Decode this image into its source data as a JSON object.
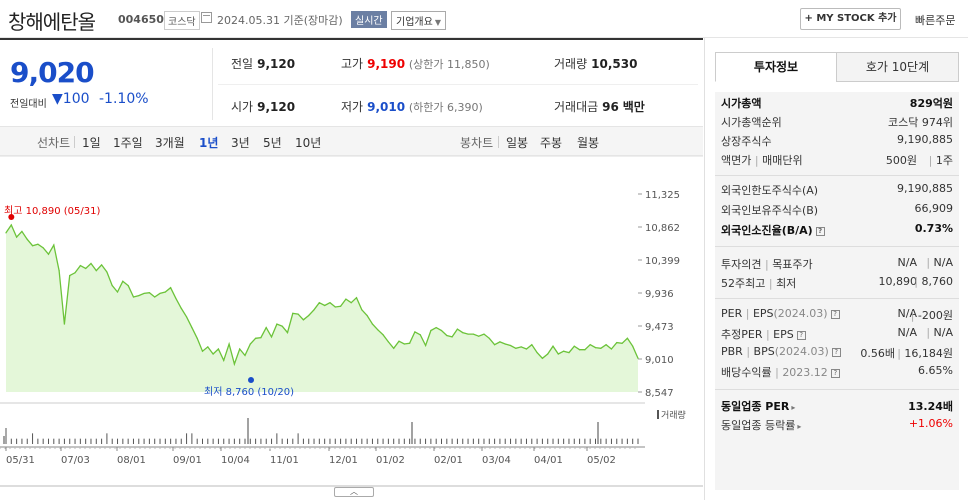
{
  "header": {
    "name": "창해에탄올",
    "code": "004650",
    "market": "코스닥",
    "date": "2024.05.31 기준(장마감)",
    "realtime": "실시간",
    "company_overview": "기업개요",
    "my_stock": "+ MY STOCK 추가",
    "quick_order": "빠른주문"
  },
  "price": {
    "current": "9,020",
    "change_label": "전일대비",
    "change_arrow": "▼",
    "change_value": "100",
    "change_pct": "-1.10%",
    "prev_label": "전일",
    "prev": "9,120",
    "high_label": "고가",
    "high": "9,190",
    "upper_limit": "(상한가 11,850)",
    "volume_label": "거래량",
    "volume": "10,530",
    "open_label": "시가",
    "open": "9,120",
    "low_label": "저가",
    "low": "9,010",
    "lower_limit": "(하한가 6,390)",
    "amount_label": "거래대금",
    "amount": "96",
    "amount_unit": "백만"
  },
  "periods": {
    "line_label": "선차트",
    "line_items": [
      "1일",
      "1주일",
      "3개월",
      "1년",
      "3년",
      "5년",
      "10년"
    ],
    "selected": "1년",
    "candle_label": "봉차트",
    "candle_items": [
      "일봉",
      "주봉",
      "월봉"
    ]
  },
  "chart_data": {
    "type": "area",
    "y_ticks": [
      "11,325",
      "10,862",
      "10,399",
      "9,936",
      "9,473",
      "9,010",
      "8,547"
    ],
    "ylim": [
      8547,
      11325
    ],
    "x_ticks": [
      "05/31",
      "07/03",
      "08/01",
      "09/01",
      "10/04",
      "11/01",
      "12/01",
      "01/02",
      "02/01",
      "03/04",
      "04/01",
      "05/02"
    ],
    "max_label": "최고 10,890 (05/31)",
    "min_label": "최저 8,760 (10/20)",
    "volume_label": "거래량",
    "series": [
      {
        "values": [
          10780,
          10890,
          10720,
          10800,
          10690,
          10600,
          10620,
          10570,
          10480,
          10610,
          10250,
          9500,
          10180,
          10220,
          10320,
          10280,
          10350,
          10250,
          10330,
          10230,
          10040,
          9950,
          10100,
          10040,
          9880,
          9900,
          9930,
          9940,
          9880,
          9930,
          9950,
          10010,
          9860,
          9720,
          9600,
          9450,
          9300,
          9120,
          9180,
          9080,
          9150,
          8990,
          9220,
          8940,
          9150,
          9060,
          9220,
          9300,
          9310,
          9450,
          9320,
          9500,
          9470,
          9380,
          9650,
          9640,
          9560,
          9620,
          9700,
          9800,
          9760,
          9800,
          9740,
          9750,
          9850,
          9800,
          9870,
          9700,
          9620,
          9500,
          9420,
          9350,
          9250,
          9160,
          9260,
          9220,
          9230,
          9390,
          9350,
          9200,
          9410,
          9450,
          9410,
          9340,
          9320,
          9430,
          9380,
          9360,
          9360,
          9330,
          9360,
          9300,
          9210,
          9250,
          9220,
          9200,
          9160,
          9180,
          9150,
          9210,
          9100,
          9020,
          9080,
          9190,
          9080,
          9120,
          9100,
          9190,
          9140,
          9140,
          9210,
          9170,
          9160,
          9210,
          9150,
          9240,
          9230,
          9300,
          9190,
          9020
        ]
      },
      {
        "name": "거래량",
        "values": [
          3,
          1,
          1,
          1,
          1,
          2,
          1,
          1,
          1,
          1,
          1,
          1,
          1,
          1,
          1,
          1,
          1,
          1,
          1,
          2,
          1,
          1,
          1,
          1,
          1,
          1,
          1,
          1,
          1,
          1,
          1,
          1,
          1,
          1,
          2,
          2,
          1,
          1,
          1,
          1,
          1,
          1,
          1,
          1,
          1,
          1,
          1,
          1,
          1,
          1,
          1,
          2,
          1,
          1,
          1,
          2,
          1,
          1,
          1,
          1,
          1,
          1,
          1,
          1,
          1,
          1,
          1,
          1,
          1,
          1,
          1,
          1,
          1,
          1,
          1,
          1,
          1,
          1,
          1,
          1,
          1,
          1,
          1,
          1,
          1,
          1,
          1,
          1,
          1,
          1,
          1,
          1,
          1,
          1,
          1,
          1,
          1,
          1,
          1,
          1,
          1,
          1,
          1,
          1,
          1,
          1,
          1,
          1,
          1,
          1,
          1,
          1,
          1,
          1,
          1,
          1,
          1,
          1,
          1,
          1
        ]
      }
    ]
  },
  "tabs": [
    "투자정보",
    "호가 10단계"
  ],
  "invest": {
    "market_cap_label": "시가총액",
    "market_cap": "829억원",
    "rank_label": "시가총액순위",
    "rank": "코스닥 974위",
    "shares_label": "상장주식수",
    "shares": "9,190,885",
    "par_label": "액면가",
    "unit_label": "매매단위",
    "par": "500원",
    "unit": "1주",
    "foreign_limit_label": "외국인한도주식수(A)",
    "foreign_limit": "9,190,885",
    "foreign_hold_label": "외국인보유주식수(B)",
    "foreign_hold": "66,909",
    "foreign_rate_label": "외국인소진율(B/A)",
    "foreign_rate": "0.73%",
    "opinion_label": "투자의견",
    "target_label": "목표주가",
    "opinion": "N/A",
    "target": "N/A",
    "w52h_label": "52주최고",
    "w52l_label": "최저",
    "w52h": "10,890",
    "w52l": "8,760",
    "per_label": "PER",
    "eps_label": "EPS",
    "eps_date": "(2024.03)",
    "per": "N/A",
    "eps": "-200원",
    "est_per_label": "추정PER",
    "est_eps_label": "EPS",
    "est_per": "N/A",
    "est_eps": "N/A",
    "pbr_label": "PBR",
    "bps_label": "BPS",
    "bps_date": "(2024.03)",
    "pbr": "0.56배",
    "bps": "16,184원",
    "div_label": "배당수익률",
    "div_date": "2023.12",
    "div": "6.65%",
    "ind_per_label": "동일업종 PER",
    "ind_per": "13.24배",
    "ind_rate_label": "동일업종 등락률",
    "ind_rate": "+1.06%"
  },
  "colors": {
    "rise": "#e00000",
    "fall": "#1a4ec9",
    "line": "#6cc33a",
    "area": "#ddf5cf"
  }
}
